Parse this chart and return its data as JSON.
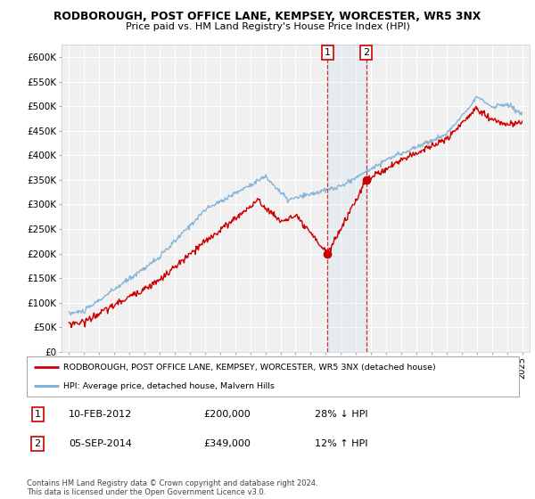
{
  "title1": "RODBOROUGH, POST OFFICE LANE, KEMPSEY, WORCESTER, WR5 3NX",
  "title2": "Price paid vs. HM Land Registry's House Price Index (HPI)",
  "legend_line1": "RODBOROUGH, POST OFFICE LANE, KEMPSEY, WORCESTER, WR5 3NX (detached house)",
  "legend_line2": "HPI: Average price, detached house, Malvern Hills",
  "event1_date": "10-FEB-2012",
  "event1_price": "£200,000",
  "event1_hpi": "28% ↓ HPI",
  "event2_date": "05-SEP-2014",
  "event2_price": "£349,000",
  "event2_hpi": "12% ↑ HPI",
  "footnote": "Contains HM Land Registry data © Crown copyright and database right 2024.\nThis data is licensed under the Open Government Licence v3.0.",
  "red_color": "#cc0000",
  "blue_color": "#7aaed6",
  "background_fig": "#ffffff",
  "ylim_min": 0,
  "ylim_max": 625000,
  "event1_year": 2012.12,
  "event2_year": 2014.67,
  "event1_price_val": 200000,
  "event2_price_val": 349000
}
